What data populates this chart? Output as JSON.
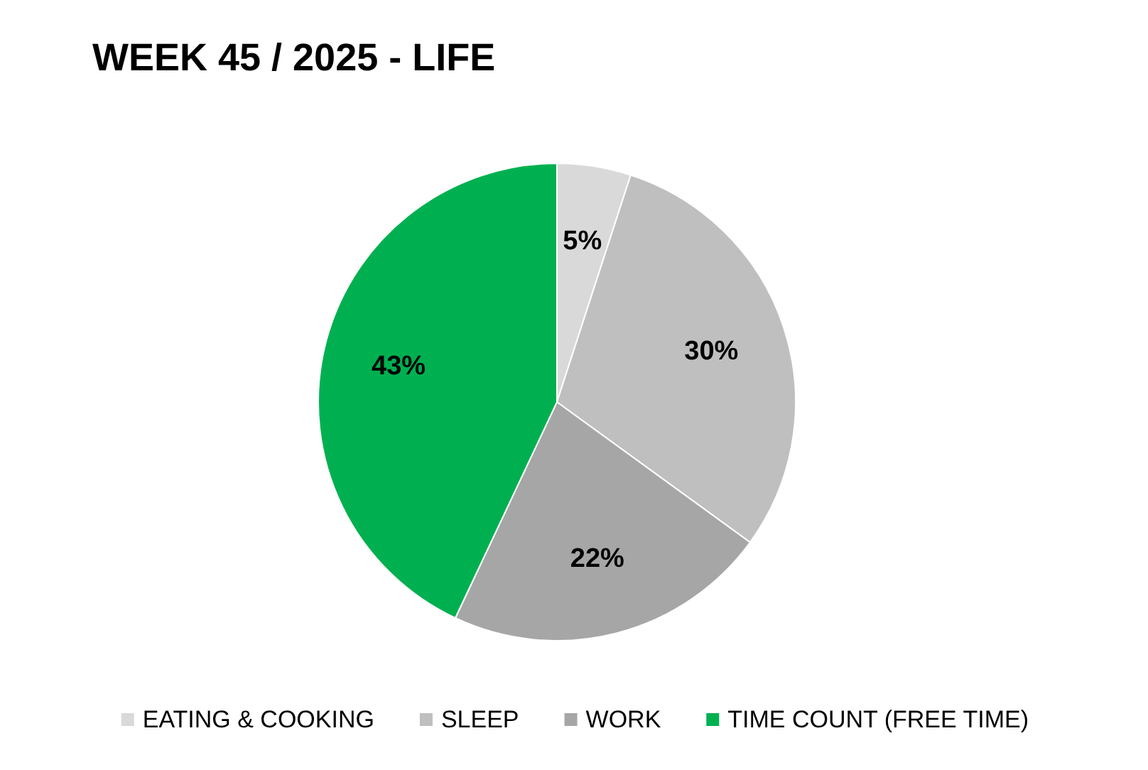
{
  "chart_data": {
    "type": "pie",
    "title": "WEEK 45 / 2025 - LIFE",
    "categories": [
      "EATING & COOKING",
      "SLEEP",
      "WORK",
      "TIME COUNT (FREE TIME)"
    ],
    "values": [
      5,
      30,
      22,
      43
    ],
    "colors": [
      "#d9d9d9",
      "#bfbfbf",
      "#a6a6a6",
      "#00b050"
    ],
    "value_labels": [
      "5%",
      "30%",
      "22%",
      "43%"
    ],
    "legend": "bottom"
  }
}
